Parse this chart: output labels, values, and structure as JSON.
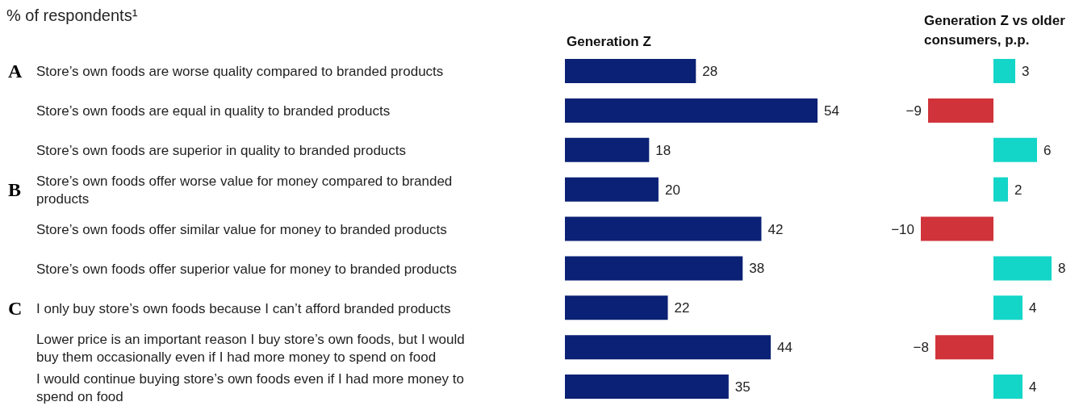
{
  "chart_data": [
    {
      "type": "bar",
      "orientation": "horizontal",
      "title": "Generation Z",
      "subtitle": "% of respondents¹",
      "categories": [
        "Store’s own foods are worse quality compared to branded products",
        "Store’s own foods are equal in quality to branded products",
        "Store’s own foods are superior in quality to branded products",
        "Store’s own foods offer worse value for money compared to branded products",
        "Store’s own foods offer similar value for money to branded products",
        "Store’s own foods offer superior value for money to branded products",
        "I only buy store’s own foods because I can’t afford branded products",
        "Lower price is an important reason I buy store’s own foods, but I would buy them occasionally even if I had more money to spend on food",
        "I would continue buying store’s own foods even if I had more money to spend on food"
      ],
      "values": [
        28,
        54,
        18,
        20,
        42,
        38,
        22,
        44,
        35
      ],
      "color": "#0b2175",
      "data_labels": true,
      "annotations": [
        "A",
        "B",
        "C"
      ]
    },
    {
      "type": "bar",
      "orientation": "horizontal",
      "title": "Generation Z vs older consumers, p.p.",
      "categories": [
        null,
        null,
        null,
        null,
        null,
        null,
        null,
        null,
        null
      ],
      "values": [
        3,
        -9,
        6,
        2,
        -10,
        8,
        4,
        -8,
        4
      ],
      "colors": [
        "#14d6c8",
        "#d0333a",
        "#14d6c8",
        "#14d6c8",
        "#d0333a",
        "#14d6c8",
        "#14d6c8",
        "#d0333a",
        "#14d6c8"
      ],
      "data_labels": true
    }
  ]
}
